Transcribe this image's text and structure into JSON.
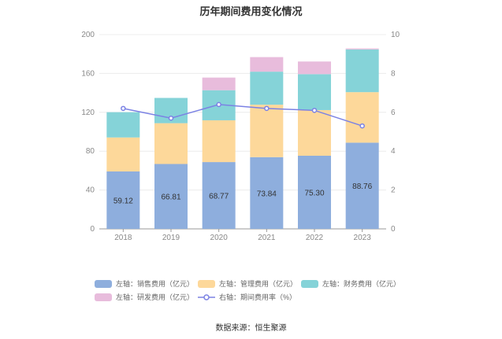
{
  "chart_data": {
    "type": "bar",
    "title": "历年期间费用变化情况",
    "categories": [
      "2018",
      "2019",
      "2020",
      "2021",
      "2022",
      "2023"
    ],
    "series": [
      {
        "name": "左轴：销售费用（亿元）",
        "axis": "left",
        "kind": "bar",
        "color": "#8eaedd",
        "values": [
          59.12,
          66.81,
          68.77,
          73.84,
          75.3,
          88.76
        ],
        "labels": [
          "59.12",
          "66.81",
          "68.77",
          "73.84",
          "75.30",
          "88.76"
        ]
      },
      {
        "name": "左轴：管理费用（亿元）",
        "axis": "left",
        "kind": "bar",
        "color": "#fdd89a",
        "values": [
          35,
          42,
          43,
          54,
          47,
          52
        ]
      },
      {
        "name": "左轴：财务费用（亿元）",
        "axis": "left",
        "kind": "bar",
        "color": "#85d3d8",
        "values": [
          26,
          26,
          31,
          34,
          37,
          44
        ]
      },
      {
        "name": "左轴：研发费用（亿元）",
        "axis": "left",
        "kind": "bar",
        "color": "#e8bcdc",
        "values": [
          0,
          0,
          13,
          15,
          13,
          1
        ]
      },
      {
        "name": "右轴：期间费用率（%）",
        "axis": "right",
        "kind": "line",
        "color": "#7b82e4",
        "values": [
          6.2,
          5.7,
          6.4,
          6.2,
          6.1,
          5.3
        ]
      }
    ],
    "y_left": {
      "min": 0,
      "max": 200,
      "ticks": [
        0,
        40,
        80,
        120,
        160,
        200
      ]
    },
    "y_right": {
      "min": 0,
      "max": 10,
      "ticks": [
        0,
        2,
        4,
        6,
        8,
        10
      ]
    },
    "legend_position": "bottom"
  },
  "source": "数据来源：恒生聚源"
}
